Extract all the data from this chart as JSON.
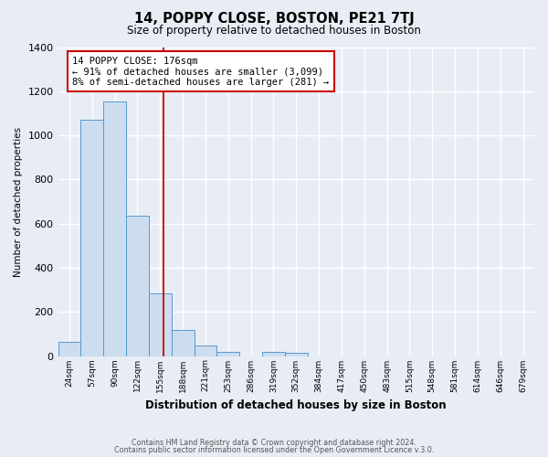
{
  "title": "14, POPPY CLOSE, BOSTON, PE21 7TJ",
  "subtitle": "Size of property relative to detached houses in Boston",
  "xlabel": "Distribution of detached houses by size in Boston",
  "ylabel": "Number of detached properties",
  "bar_labels": [
    "24sqm",
    "57sqm",
    "90sqm",
    "122sqm",
    "155sqm",
    "188sqm",
    "221sqm",
    "253sqm",
    "286sqm",
    "319sqm",
    "352sqm",
    "384sqm",
    "417sqm",
    "450sqm",
    "483sqm",
    "515sqm",
    "548sqm",
    "581sqm",
    "614sqm",
    "646sqm",
    "679sqm"
  ],
  "bar_values": [
    65,
    1070,
    1155,
    635,
    285,
    120,
    48,
    18,
    0,
    18,
    15,
    0,
    0,
    0,
    0,
    0,
    0,
    0,
    0,
    0,
    0
  ],
  "bar_color": "#ccddf0",
  "bar_edge_color": "#5599cc",
  "property_label": "14 POPPY CLOSE: 176sqm",
  "annotation_line1": "← 91% of detached houses are smaller (3,099)",
  "annotation_line2": "8% of semi-detached houses are larger (281) →",
  "vline_color": "#cc0000",
  "ylim": [
    0,
    1400
  ],
  "yticks": [
    0,
    200,
    400,
    600,
    800,
    1000,
    1200,
    1400
  ],
  "bg_color": "#e8edf5",
  "plot_bg_color": "#e8edf5",
  "grid_color": "#ffffff",
  "annotation_box_facecolor": "#ffffff",
  "annotation_box_edge": "#cc0000",
  "footer_line1": "Contains HM Land Registry data © Crown copyright and database right 2024.",
  "footer_line2": "Contains public sector information licensed under the Open Government Licence v.3.0."
}
